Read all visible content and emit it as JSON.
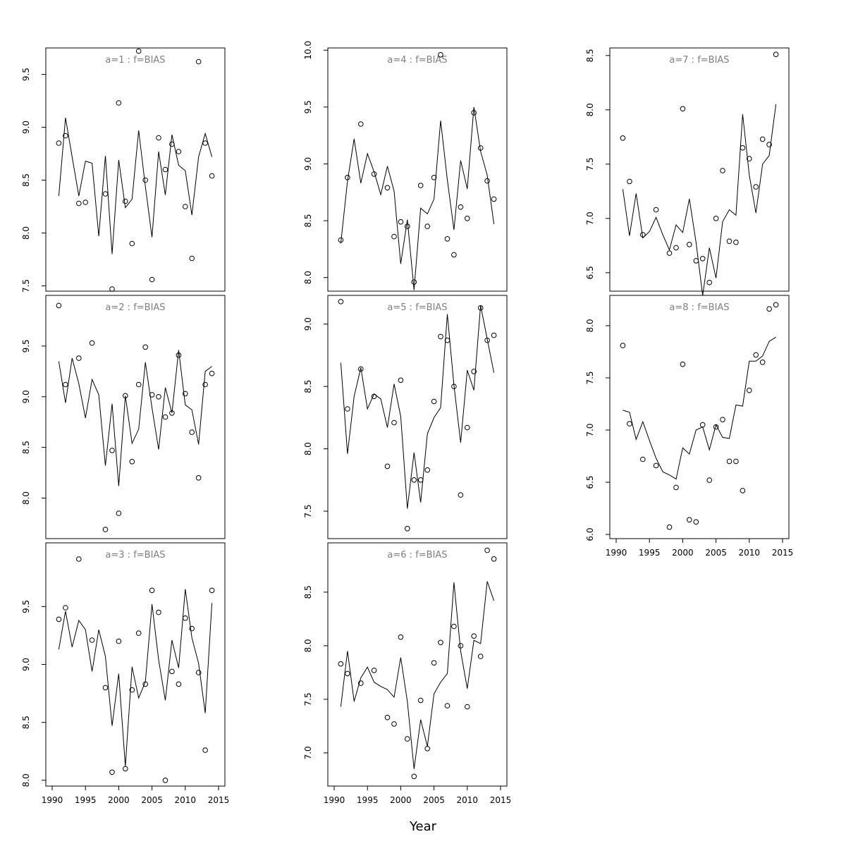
{
  "figure": {
    "xlabel": "Year"
  },
  "colors": {
    "line": "#000000",
    "points": "#000000",
    "title": "#7f7f7f",
    "background": "#ffffff"
  },
  "chart_data": [
    {
      "type": "line",
      "title": "a=1  :  f=BIAS",
      "x": [
        1991,
        1992,
        1993,
        1994,
        1995,
        1996,
        1997,
        1998,
        1999,
        2000,
        2001,
        2002,
        2003,
        2004,
        2005,
        2006,
        2007,
        2008,
        2009,
        2010,
        2011,
        2012,
        2013,
        2014
      ],
      "xlim": [
        1990,
        2015
      ],
      "xticks": [
        "1990",
        "1995",
        "2000",
        "2005",
        "2010",
        "2015"
      ],
      "ylim": [
        7.45,
        9.75
      ],
      "yticks": [
        "7.5",
        "8.0",
        "8.5",
        "9.0",
        "9.5"
      ],
      "series": [
        {
          "kind": "points",
          "values": [
            8.85,
            8.92,
            null,
            8.28,
            8.29,
            null,
            null,
            8.37,
            7.47,
            9.23,
            8.3,
            7.9,
            9.72,
            8.5,
            7.56,
            8.9,
            8.6,
            8.84,
            8.77,
            8.25,
            7.76,
            9.62,
            8.85,
            8.54
          ]
        },
        {
          "kind": "line",
          "values": [
            8.35,
            9.09,
            8.72,
            8.35,
            8.68,
            8.66,
            7.97,
            8.73,
            7.8,
            8.69,
            8.24,
            8.32,
            8.97,
            8.44,
            7.96,
            8.77,
            8.36,
            8.93,
            8.64,
            8.59,
            8.17,
            8.72,
            8.94,
            8.72
          ]
        }
      ]
    },
    {
      "type": "line",
      "title": "a=2  :  f=BIAS",
      "x": [
        1991,
        1992,
        1993,
        1994,
        1995,
        1996,
        1997,
        1998,
        1999,
        2000,
        2001,
        2002,
        2003,
        2004,
        2005,
        2006,
        2007,
        2008,
        2009,
        2010,
        2011,
        2012,
        2013,
        2014
      ],
      "xlim": [
        1990,
        2015
      ],
      "xticks": [
        "1990",
        "1995",
        "2000",
        "2005",
        "2010",
        "2015"
      ],
      "ylim": [
        7.6,
        10.0
      ],
      "yticks": [
        "8.0",
        "8.5",
        "9.0",
        "9.5"
      ],
      "series": [
        {
          "kind": "points",
          "values": [
            9.9,
            9.12,
            null,
            9.38,
            null,
            9.53,
            null,
            7.69,
            8.47,
            7.85,
            9.01,
            8.36,
            9.12,
            9.49,
            9.02,
            9.0,
            8.8,
            8.84,
            9.41,
            9.03,
            8.65,
            8.2,
            9.12,
            9.23
          ]
        },
        {
          "kind": "line",
          "values": [
            9.35,
            8.94,
            9.38,
            9.13,
            8.79,
            9.17,
            9.02,
            8.32,
            8.93,
            8.12,
            9.01,
            8.54,
            8.68,
            9.34,
            8.89,
            8.48,
            9.09,
            8.84,
            9.46,
            8.92,
            8.87,
            8.53,
            9.25,
            9.3
          ]
        }
      ]
    },
    {
      "type": "line",
      "title": "a=3  :  f=BIAS",
      "x": [
        1991,
        1992,
        1993,
        1994,
        1995,
        1996,
        1997,
        1998,
        1999,
        2000,
        2001,
        2002,
        2003,
        2004,
        2005,
        2006,
        2007,
        2008,
        2009,
        2010,
        2011,
        2012,
        2013,
        2014
      ],
      "xlim": [
        1990,
        2015
      ],
      "xticks": [
        "1990",
        "1995",
        "2000",
        "2005",
        "2010",
        "2015"
      ],
      "ylim": [
        7.95,
        10.05
      ],
      "yticks": [
        "8.0",
        "8.5",
        "9.0",
        "9.5"
      ],
      "series": [
        {
          "kind": "points",
          "values": [
            9.39,
            9.49,
            null,
            9.91,
            null,
            9.21,
            null,
            8.8,
            8.07,
            9.2,
            8.1,
            8.78,
            9.27,
            8.83,
            9.64,
            9.45,
            8.0,
            8.94,
            8.83,
            9.4,
            9.31,
            8.93,
            8.26,
            9.64
          ]
        },
        {
          "kind": "line",
          "values": [
            9.13,
            9.46,
            9.15,
            9.38,
            9.3,
            8.94,
            9.3,
            9.07,
            8.47,
            8.92,
            8.12,
            8.98,
            8.71,
            8.85,
            9.52,
            9.04,
            8.69,
            9.21,
            8.97,
            9.65,
            9.23,
            9.01,
            8.58,
            9.53
          ]
        }
      ]
    },
    {
      "type": "line",
      "title": "a=4  :  f=BIAS",
      "x": [
        1991,
        1992,
        1993,
        1994,
        1995,
        1996,
        1997,
        1998,
        1999,
        2000,
        2001,
        2002,
        2003,
        2004,
        2005,
        2006,
        2007,
        2008,
        2009,
        2010,
        2011,
        2012,
        2013,
        2014
      ],
      "xlim": [
        1990,
        2015
      ],
      "xticks": [
        "1990",
        "1995",
        "2000",
        "2005",
        "2010",
        "2015"
      ],
      "ylim": [
        7.88,
        10.02
      ],
      "yticks": [
        "8.0",
        "8.5",
        "9.0",
        "9.5",
        "10.0"
      ],
      "series": [
        {
          "kind": "points",
          "values": [
            8.33,
            8.88,
            null,
            9.35,
            null,
            8.91,
            null,
            8.79,
            8.36,
            8.49,
            8.45,
            7.96,
            8.81,
            8.45,
            8.88,
            9.96,
            8.34,
            8.2,
            8.62,
            8.52,
            9.45,
            9.14,
            8.85,
            8.69
          ]
        },
        {
          "kind": "line",
          "values": [
            8.3,
            8.85,
            9.22,
            8.83,
            9.09,
            8.93,
            8.73,
            8.98,
            8.76,
            8.12,
            8.51,
            7.89,
            8.61,
            8.56,
            8.69,
            9.38,
            8.86,
            8.42,
            9.03,
            8.78,
            9.5,
            9.11,
            8.9,
            8.47
          ]
        }
      ]
    },
    {
      "type": "line",
      "title": "a=5  :  f=BIAS",
      "x": [
        1991,
        1992,
        1993,
        1994,
        1995,
        1996,
        1997,
        1998,
        1999,
        2000,
        2001,
        2002,
        2003,
        2004,
        2005,
        2006,
        2007,
        2008,
        2009,
        2010,
        2011,
        2012,
        2013,
        2014
      ],
      "xlim": [
        1990,
        2015
      ],
      "xticks": [
        "1990",
        "1995",
        "2000",
        "2005",
        "2010",
        "2015"
      ],
      "ylim": [
        7.28,
        9.23
      ],
      "yticks": [
        "7.5",
        "8.0",
        "8.5",
        "9.0"
      ],
      "series": [
        {
          "kind": "points",
          "values": [
            9.18,
            8.32,
            null,
            8.64,
            null,
            8.42,
            null,
            7.86,
            8.21,
            8.55,
            7.36,
            7.75,
            7.75,
            7.83,
            8.38,
            8.9,
            8.87,
            8.5,
            7.63,
            8.17,
            8.62,
            9.13,
            8.87,
            8.91
          ]
        },
        {
          "kind": "line",
          "values": [
            8.69,
            7.96,
            8.42,
            8.65,
            8.32,
            8.44,
            8.4,
            8.17,
            8.52,
            8.26,
            7.52,
            7.97,
            7.57,
            8.12,
            8.25,
            8.33,
            9.08,
            8.51,
            8.05,
            8.63,
            8.47,
            9.15,
            8.88,
            8.61
          ]
        }
      ]
    },
    {
      "type": "line",
      "title": "a=6  :  f=BIAS",
      "x": [
        1991,
        1992,
        1993,
        1994,
        1995,
        1996,
        1997,
        1998,
        1999,
        2000,
        2001,
        2002,
        2003,
        2004,
        2005,
        2006,
        2007,
        2008,
        2009,
        2010,
        2011,
        2012,
        2013,
        2014
      ],
      "xlim": [
        1990,
        2015
      ],
      "xticks": [
        "1990",
        "1995",
        "2000",
        "2005",
        "2010",
        "2015"
      ],
      "ylim": [
        6.69,
        8.96
      ],
      "yticks": [
        "7.0",
        "7.5",
        "8.0",
        "8.5"
      ],
      "series": [
        {
          "kind": "points",
          "values": [
            7.83,
            7.74,
            null,
            7.65,
            null,
            7.77,
            null,
            7.33,
            7.27,
            8.08,
            7.13,
            6.78,
            7.49,
            7.04,
            7.84,
            8.03,
            7.44,
            8.18,
            8.0,
            7.43,
            8.09,
            7.9,
            8.89,
            8.81
          ]
        },
        {
          "kind": "line",
          "values": [
            7.43,
            7.95,
            7.48,
            7.7,
            7.8,
            7.66,
            7.62,
            7.59,
            7.52,
            7.89,
            7.48,
            6.85,
            7.31,
            7.06,
            7.55,
            7.66,
            7.74,
            8.59,
            7.95,
            7.6,
            8.05,
            8.02,
            8.6,
            8.42
          ]
        }
      ]
    },
    {
      "type": "line",
      "title": "a=7  :  f=BIAS",
      "x": [
        1991,
        1992,
        1993,
        1994,
        1995,
        1996,
        1997,
        1998,
        1999,
        2000,
        2001,
        2002,
        2003,
        2004,
        2005,
        2006,
        2007,
        2008,
        2009,
        2010,
        2011,
        2012,
        2013,
        2014
      ],
      "xlim": [
        1990,
        2015
      ],
      "xticks": [
        "1990",
        "1995",
        "2000",
        "2005",
        "2010",
        "2015"
      ],
      "ylim": [
        6.33,
        8.57
      ],
      "yticks": [
        "6.5",
        "7.0",
        "7.5",
        "8.0",
        "8.5"
      ],
      "series": [
        {
          "kind": "points",
          "values": [
            7.74,
            7.34,
            null,
            6.85,
            null,
            7.08,
            null,
            6.68,
            6.73,
            8.01,
            6.76,
            6.61,
            6.63,
            6.41,
            7.0,
            7.44,
            6.79,
            6.78,
            7.65,
            7.55,
            7.29,
            7.73,
            7.68,
            8.51
          ]
        },
        {
          "kind": "line",
          "values": [
            7.27,
            6.84,
            7.23,
            6.82,
            6.88,
            7.01,
            6.85,
            6.71,
            6.94,
            6.87,
            7.18,
            6.78,
            6.29,
            6.73,
            6.45,
            6.97,
            7.08,
            7.03,
            7.96,
            7.4,
            7.05,
            7.5,
            7.58,
            8.05
          ]
        }
      ]
    },
    {
      "type": "line",
      "title": "a=8  :  f=BIAS",
      "x": [
        1991,
        1992,
        1993,
        1994,
        1995,
        1996,
        1997,
        1998,
        1999,
        2000,
        2001,
        2002,
        2003,
        2004,
        2005,
        2006,
        2007,
        2008,
        2009,
        2010,
        2011,
        2012,
        2013,
        2014
      ],
      "xlim": [
        1990,
        2015
      ],
      "xticks": [
        "1990",
        "1995",
        "2000",
        "2005",
        "2010",
        "2015"
      ],
      "ylim": [
        5.96,
        8.29
      ],
      "yticks": [
        "6.0",
        "6.5",
        "7.0",
        "7.5",
        "8.0"
      ],
      "series": [
        {
          "kind": "points",
          "values": [
            7.81,
            7.06,
            null,
            6.72,
            null,
            6.66,
            null,
            6.07,
            6.45,
            7.63,
            6.14,
            6.12,
            7.05,
            6.52,
            7.03,
            7.1,
            6.7,
            6.7,
            6.42,
            7.38,
            7.72,
            7.65,
            8.16,
            8.2
          ]
        },
        {
          "kind": "line",
          "values": [
            7.19,
            7.17,
            6.91,
            7.08,
            6.9,
            6.73,
            6.6,
            6.57,
            6.53,
            6.83,
            6.77,
            7.0,
            7.03,
            6.81,
            7.05,
            6.93,
            6.92,
            7.24,
            7.23,
            7.66,
            7.66,
            7.71,
            7.85,
            7.89
          ]
        }
      ]
    }
  ]
}
